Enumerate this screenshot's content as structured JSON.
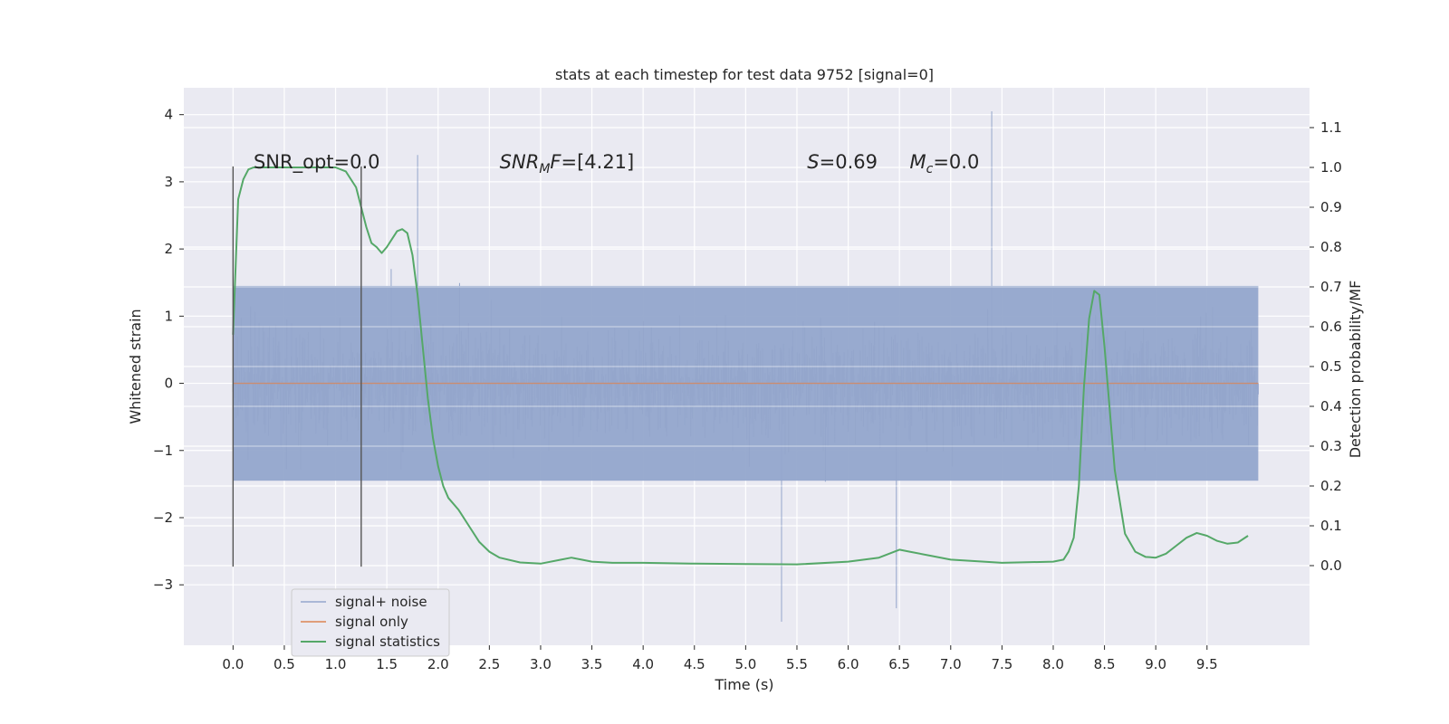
{
  "chart_data": {
    "type": "line",
    "title": "stats at each timestep for test data 9752 [signal=0]",
    "xlabel": "Time (s)",
    "ylabel": "Whitened strain",
    "y2label": "Detection probability/MF",
    "xlim": [
      -0.48,
      10.5
    ],
    "ylim": [
      -3.9,
      4.4
    ],
    "y2lim": [
      -0.2,
      1.2
    ],
    "x_ticks": [
      0.0,
      0.5,
      1.0,
      1.5,
      2.0,
      2.5,
      3.0,
      3.5,
      4.0,
      4.5,
      5.0,
      5.5,
      6.0,
      6.5,
      7.0,
      7.5,
      8.0,
      8.5,
      9.0,
      9.5
    ],
    "x_tick_labels": [
      "0.0",
      "0.5",
      "1.0",
      "1.5",
      "2.0",
      "2.5",
      "3.0",
      "3.5",
      "4.0",
      "4.5",
      "5.0",
      "5.5",
      "6.0",
      "6.5",
      "7.0",
      "7.5",
      "8.0",
      "8.5",
      "9.0",
      "9.5"
    ],
    "y_ticks": [
      4,
      3,
      2,
      1,
      0,
      -1,
      -2,
      -3
    ],
    "y_tick_labels": [
      "4",
      "3",
      "2",
      "1",
      "0",
      "−1",
      "−2",
      "−3"
    ],
    "y2_ticks": [
      1.1,
      1.0,
      0.9,
      0.8,
      0.7,
      0.6,
      0.5,
      0.4,
      0.3,
      0.2,
      0.1,
      0.0
    ],
    "y2_tick_labels": [
      "1.1",
      "1.0",
      "0.9",
      "0.8",
      "0.7",
      "0.6",
      "0.5",
      "0.4",
      "0.3",
      "0.2",
      "0.1",
      "0.0"
    ],
    "grid": true,
    "legend_position": "lower-left",
    "annotations": [
      {
        "text": "SNR_opt=0.0",
        "x": 0.2,
        "y": 3.2
      },
      {
        "text": "SNR_MF=[4.21]",
        "x": 2.6,
        "y": 3.2
      },
      {
        "text": "S=0.69",
        "x": 5.6,
        "y": 3.2
      },
      {
        "text": "M_c=0.0",
        "x": 6.6,
        "y": 3.2
      }
    ],
    "vertical_markers": [
      {
        "x": 0.0,
        "y_range": [
          -2.73,
          3.23
        ]
      },
      {
        "x": 1.25,
        "y_range": [
          -2.73,
          3.23
        ]
      }
    ],
    "series": [
      {
        "name": "signal+ noise",
        "axis": "left",
        "color": "#94a6cc",
        "x_range": [
          0.0,
          10.0
        ],
        "summary": "dense whitened noise, bulk within about [-1.5, 1.5], spikes up to 4.05 near x=7.4 and down to -3.55 near x=5.35"
      },
      {
        "name": "signal only",
        "axis": "left",
        "color": "#dd8452",
        "x": [
          0.0,
          10.0
        ],
        "values": [
          0.0,
          0.0
        ]
      },
      {
        "name": "signal statistics",
        "axis": "right",
        "color": "#55a868",
        "x": [
          0.0,
          0.05,
          0.1,
          0.15,
          0.2,
          0.4,
          0.6,
          0.8,
          1.0,
          1.1,
          1.2,
          1.3,
          1.35,
          1.4,
          1.45,
          1.5,
          1.55,
          1.6,
          1.65,
          1.7,
          1.75,
          1.8,
          1.85,
          1.9,
          1.95,
          2.0,
          2.05,
          2.1,
          2.2,
          2.3,
          2.4,
          2.5,
          2.6,
          2.8,
          3.0,
          3.2,
          3.3,
          3.4,
          3.5,
          3.7,
          4.0,
          4.5,
          5.0,
          5.5,
          6.0,
          6.3,
          6.4,
          6.5,
          6.6,
          6.8,
          7.0,
          7.5,
          8.0,
          8.1,
          8.15,
          8.2,
          8.25,
          8.3,
          8.35,
          8.4,
          8.45,
          8.5,
          8.6,
          8.7,
          8.8,
          8.9,
          9.0,
          9.1,
          9.2,
          9.3,
          9.4,
          9.5,
          9.6,
          9.7,
          9.8,
          9.9
        ],
        "values": [
          0.58,
          0.92,
          0.97,
          0.995,
          1.0,
          1.0,
          1.0,
          1.0,
          1.0,
          0.99,
          0.95,
          0.85,
          0.81,
          0.8,
          0.785,
          0.8,
          0.82,
          0.84,
          0.845,
          0.835,
          0.78,
          0.68,
          0.55,
          0.42,
          0.32,
          0.25,
          0.2,
          0.17,
          0.14,
          0.1,
          0.06,
          0.035,
          0.02,
          0.008,
          0.005,
          0.015,
          0.02,
          0.015,
          0.01,
          0.007,
          0.007,
          0.005,
          0.004,
          0.003,
          0.01,
          0.02,
          0.03,
          0.04,
          0.035,
          0.025,
          0.015,
          0.007,
          0.01,
          0.015,
          0.035,
          0.07,
          0.2,
          0.45,
          0.62,
          0.69,
          0.68,
          0.55,
          0.24,
          0.08,
          0.035,
          0.022,
          0.02,
          0.03,
          0.05,
          0.07,
          0.082,
          0.075,
          0.062,
          0.055,
          0.058,
          0.075
        ]
      }
    ]
  }
}
